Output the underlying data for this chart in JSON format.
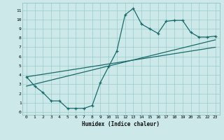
{
  "xlabel": "Humidex (Indice chaleur)",
  "ylabel": "",
  "bg_color": "#cce8e8",
  "grid_color": "#99cccc",
  "line_color": "#1a6b6b",
  "xlim": [
    -0.5,
    23.5
  ],
  "ylim": [
    -0.3,
    11.8
  ],
  "xticks": [
    0,
    1,
    2,
    3,
    4,
    5,
    6,
    7,
    8,
    9,
    10,
    11,
    12,
    13,
    14,
    15,
    16,
    17,
    18,
    19,
    20,
    21,
    22,
    23
  ],
  "yticks": [
    0,
    1,
    2,
    3,
    4,
    5,
    6,
    7,
    8,
    9,
    10,
    11
  ],
  "line1_x": [
    0,
    1,
    2,
    3,
    4,
    5,
    6,
    7,
    8,
    9,
    10,
    11,
    12,
    13,
    14,
    15,
    16,
    17,
    18,
    19,
    20,
    21,
    22,
    23
  ],
  "line1_y": [
    3.8,
    2.8,
    2.1,
    1.2,
    1.2,
    0.4,
    0.4,
    0.4,
    0.7,
    3.2,
    4.9,
    6.6,
    10.5,
    11.2,
    9.5,
    9.0,
    8.5,
    9.8,
    9.9,
    9.9,
    8.6,
    8.1,
    8.1,
    8.2
  ],
  "line2_x": [
    0,
    23
  ],
  "line2_y": [
    2.8,
    7.8
  ],
  "line3_x": [
    0,
    23
  ],
  "line3_y": [
    3.8,
    7.0
  ]
}
